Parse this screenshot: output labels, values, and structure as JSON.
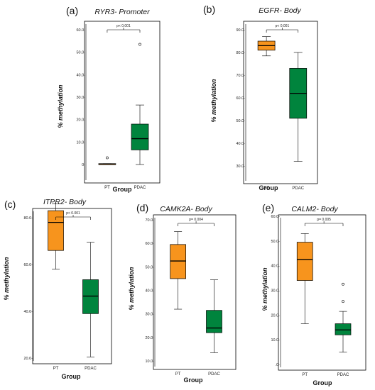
{
  "chart_data": [
    {
      "type": "box",
      "panel_label": "(a)",
      "title": "RYR3- Promoter",
      "ylabel": "% methylation",
      "xlabel": "Group",
      "ylim": [
        0,
        60
      ],
      "yticks": [
        0,
        10,
        20,
        30,
        40,
        50,
        60
      ],
      "ytick_labels": [
        "0-",
        "10.0-",
        "20.0-",
        "30.0-",
        "40.0-",
        "50.0-",
        "60.0-"
      ],
      "significance": "p< 0.001",
      "groups": [
        {
          "name": "PT",
          "color": "#F7941D",
          "whisker_low": 0,
          "q1": 0,
          "median": 0,
          "q3": 0.4,
          "whisker_high": 0.4,
          "outliers": [
            3
          ]
        },
        {
          "name": "PDAC",
          "color": "#00843D",
          "whisker_low": 0,
          "q1": 6.5,
          "median": 11.5,
          "q3": 18,
          "whisker_high": 26.5,
          "outliers": [
            53.5
          ]
        }
      ]
    },
    {
      "type": "box",
      "panel_label": "(b)",
      "title": "EGFR- Body",
      "ylabel": "% methylation",
      "xlabel": "Group",
      "ylim": [
        30,
        90
      ],
      "yticks": [
        30,
        40,
        50,
        60,
        70,
        80,
        90
      ],
      "ytick_labels": [
        "30.0-",
        "40.0-",
        "50.0-",
        "60.0-",
        "70.0-",
        "80.0-",
        "90.0-"
      ],
      "significance": "p< 0.001",
      "groups": [
        {
          "name": "PT",
          "color": "#F7941D",
          "whisker_low": 78.5,
          "q1": 81,
          "median": 83,
          "q3": 85,
          "whisker_high": 87,
          "outliers": []
        },
        {
          "name": "PDAC",
          "color": "#00843D",
          "whisker_low": 32,
          "q1": 51,
          "median": 62,
          "q3": 73,
          "whisker_high": 80,
          "outliers": []
        }
      ]
    },
    {
      "type": "box",
      "panel_label": "(c)",
      "title": "ITPR2- Body",
      "ylabel": "% methylation",
      "xlabel": "Group",
      "ylim": [
        20,
        90
      ],
      "yticks": [
        20,
        40,
        60,
        80
      ],
      "ytick_labels": [
        "20.0-",
        "40.0-",
        "60.0-",
        "80.0-"
      ],
      "significance": "p< 0.001",
      "groups": [
        {
          "name": "PT",
          "color": "#F7941D",
          "whisker_low": 58,
          "q1": 66,
          "median": 78,
          "q3": 83,
          "whisker_high": 86,
          "outliers": []
        },
        {
          "name": "PDAC",
          "color": "#00843D",
          "whisker_low": 20.5,
          "q1": 39,
          "median": 46.5,
          "q3": 53.5,
          "whisker_high": 69.5,
          "outliers": []
        }
      ]
    },
    {
      "type": "box",
      "panel_label": "(d)",
      "title": "CAMK2A- Body",
      "ylabel": "% methylation",
      "xlabel": "Group",
      "ylim": [
        10,
        70
      ],
      "yticks": [
        10,
        20,
        30,
        40,
        50,
        60,
        70
      ],
      "ytick_labels": [
        "10.0-",
        "20.0-",
        "30.0-",
        "40.0-",
        "50.0-",
        "60.0-",
        "70.0-"
      ],
      "significance": "p= 0.004",
      "groups": [
        {
          "name": "PT",
          "color": "#F7941D",
          "whisker_low": 32,
          "q1": 45,
          "median": 52.5,
          "q3": 59.5,
          "whisker_high": 65,
          "outliers": []
        },
        {
          "name": "PDAC",
          "color": "#00843D",
          "whisker_low": 13.5,
          "q1": 22,
          "median": 24,
          "q3": 31.5,
          "whisker_high": 44.5,
          "outliers": []
        }
      ]
    },
    {
      "type": "box",
      "panel_label": "(e)",
      "title": "CALM2- Body",
      "ylabel": "% methylation",
      "xlabel": "Group",
      "ylim": [
        0,
        60
      ],
      "yticks": [
        0,
        10,
        20,
        30,
        40,
        50,
        60
      ],
      "ytick_labels": [
        ".0-",
        "10.0-",
        "20.0-",
        "30.0-",
        "40.0-",
        "50.0-",
        "60.0-"
      ],
      "significance": "p= 0.005",
      "groups": [
        {
          "name": "PT",
          "color": "#F7941D",
          "whisker_low": 16.5,
          "q1": 34,
          "median": 42.5,
          "q3": 49.5,
          "whisker_high": 53,
          "outliers": []
        },
        {
          "name": "PDAC",
          "color": "#00843D",
          "whisker_low": 5,
          "q1": 12,
          "median": 14,
          "q3": 16.5,
          "whisker_high": 21.5,
          "outliers": [
            25.5,
            32.5
          ]
        }
      ]
    }
  ]
}
